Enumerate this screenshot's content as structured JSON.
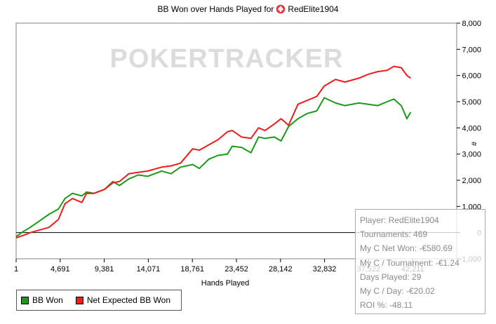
{
  "title": {
    "text": "BB Won over Hands Played for",
    "player": "RedElite1904",
    "icon": "pokerstars-spade-icon"
  },
  "watermark": "POKERTRACKER",
  "legend": [
    {
      "label": "BB Won",
      "color": "#1a9a1a"
    },
    {
      "label": "Net Expected BB Won",
      "color": "#ee1c1c"
    }
  ],
  "info_box": {
    "lines": [
      "Player: RedElite1904",
      "Tournaments: 469",
      "My C Net Won: -€580.69",
      "My C / Tournament: -€1.24",
      "Days Played: 29",
      "My C / Day: -€20.02",
      "ROI %: -48.11"
    ]
  },
  "chart_data": {
    "type": "line",
    "xlabel": "Hands Played",
    "ylabel": "#",
    "x_ticks": [
      "1",
      "4,691",
      "9,381",
      "14,071",
      "18,761",
      "23,452",
      "28,142",
      "32,832",
      "37,522",
      "42,211"
    ],
    "y_ticks": [
      "-1,000",
      "0",
      "1,000",
      "2,000",
      "3,000",
      "4,000",
      "5,000",
      "6,000",
      "7,000",
      "8,000"
    ],
    "xlim": [
      1,
      46900
    ],
    "ylim": [
      -1000,
      8000
    ],
    "grid": false,
    "legend_position": "bottom-left",
    "series": [
      {
        "name": "BB Won",
        "color": "#1a9a1a",
        "x": [
          1,
          800,
          1500,
          2500,
          3500,
          4500,
          5200,
          6000,
          7000,
          7500,
          8300,
          9400,
          10300,
          11000,
          12000,
          13000,
          14000,
          15500,
          16500,
          17500,
          18800,
          19500,
          20500,
          21500,
          22500,
          23000,
          24000,
          25000,
          25800,
          26500,
          27500,
          28200,
          29000,
          30000,
          31000,
          32000,
          32800,
          34000,
          35000,
          36500,
          37500,
          38500,
          39500,
          40200,
          41000,
          41600,
          42000
        ],
        "y": [
          -150,
          50,
          200,
          450,
          700,
          900,
          1300,
          1500,
          1400,
          1550,
          1500,
          1650,
          1950,
          1800,
          2050,
          2200,
          2150,
          2350,
          2250,
          2500,
          2600,
          2450,
          2800,
          2950,
          3000,
          3300,
          3250,
          3050,
          3650,
          3600,
          3650,
          3500,
          4050,
          4350,
          4550,
          4650,
          5150,
          4950,
          4850,
          4950,
          4900,
          4850,
          5000,
          5100,
          4850,
          4350,
          4600
        ]
      },
      {
        "name": "Net Expected BB Won",
        "color": "#ee1c1c",
        "x": [
          1,
          800,
          1500,
          2500,
          3500,
          4500,
          5200,
          6000,
          7000,
          7500,
          8300,
          9400,
          10300,
          11000,
          12000,
          13000,
          14000,
          15500,
          16500,
          17500,
          18800,
          19500,
          20500,
          21500,
          22500,
          23000,
          24000,
          25000,
          25800,
          26500,
          27500,
          28200,
          29000,
          30000,
          31000,
          32000,
          32800,
          34000,
          35000,
          36500,
          37500,
          38500,
          39500,
          40200,
          41000,
          41600,
          42000
        ],
        "y": [
          -200,
          -100,
          0,
          100,
          200,
          500,
          1100,
          1300,
          1150,
          1500,
          1500,
          1650,
          1900,
          1950,
          2250,
          2300,
          2350,
          2500,
          2550,
          2650,
          3200,
          3150,
          3350,
          3550,
          3850,
          3900,
          3650,
          3600,
          4000,
          3900,
          4150,
          4350,
          4100,
          4900,
          5050,
          5200,
          5600,
          5850,
          5750,
          5900,
          6050,
          6150,
          6200,
          6350,
          6300,
          6000,
          5900
        ]
      }
    ]
  }
}
